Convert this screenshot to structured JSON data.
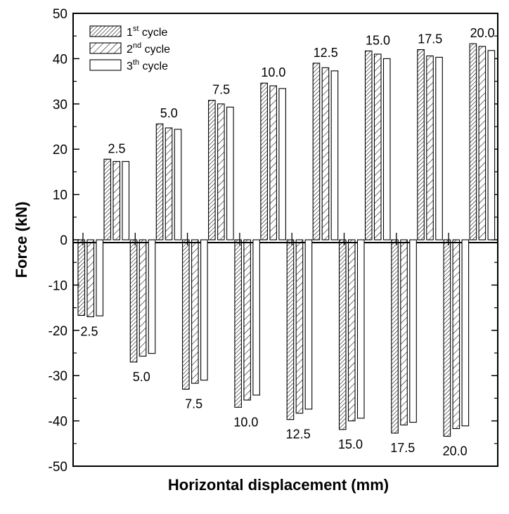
{
  "chart_data": {
    "type": "bar",
    "xlabel": "Horizontal displacement (mm)",
    "ylabel": "Force (kN)",
    "ylim": [
      -50,
      50
    ],
    "yticks": [
      50,
      40,
      30,
      20,
      10,
      0,
      -10,
      -20,
      -30,
      -40,
      -50
    ],
    "grid": false,
    "legend_position": "top-left",
    "categories": [
      "2.5",
      "5.0",
      "7.5",
      "10.0",
      "12.5",
      "15.0",
      "17.5",
      "20.0"
    ],
    "positive_labels": [
      "2.5",
      "5.0",
      "7.5",
      "10.0",
      "12.5",
      "15.0",
      "17.5",
      "20.0"
    ],
    "negative_labels": [
      "2.5",
      "5.0",
      "7.5",
      "10.0",
      "12.5",
      "15.0",
      "17.5",
      "20.0"
    ],
    "series": [
      {
        "name": "1st cycle",
        "legend_base": "1",
        "legend_sup": "st",
        "legend_rest": " cycle",
        "pattern": "dense-hatch",
        "positive": [
          17.8,
          25.6,
          30.8,
          34.6,
          39.0,
          41.7,
          42.0,
          43.3
        ],
        "negative": [
          -16.7,
          -27.0,
          -33.0,
          -37.0,
          -39.7,
          -41.9,
          -42.7,
          -43.4
        ]
      },
      {
        "name": "2nd cycle",
        "legend_base": "2",
        "legend_sup": "nd",
        "legend_rest": " cycle",
        "pattern": "sparse-hatch",
        "positive": [
          17.3,
          24.7,
          30.0,
          34.0,
          38.0,
          41.0,
          40.6,
          42.7
        ],
        "negative": [
          -17.0,
          -25.7,
          -31.7,
          -35.4,
          -38.3,
          -40.0,
          -40.9,
          -41.7
        ]
      },
      {
        "name": "3th cycle",
        "legend_base": "3",
        "legend_sup": "th",
        "legend_rest": " cycle",
        "pattern": "none",
        "positive": [
          17.3,
          24.4,
          29.3,
          33.4,
          37.3,
          40.0,
          40.3,
          41.8
        ],
        "negative": [
          -16.8,
          -25.1,
          -31.0,
          -34.3,
          -37.4,
          -39.4,
          -40.3,
          -41.1
        ]
      }
    ]
  }
}
